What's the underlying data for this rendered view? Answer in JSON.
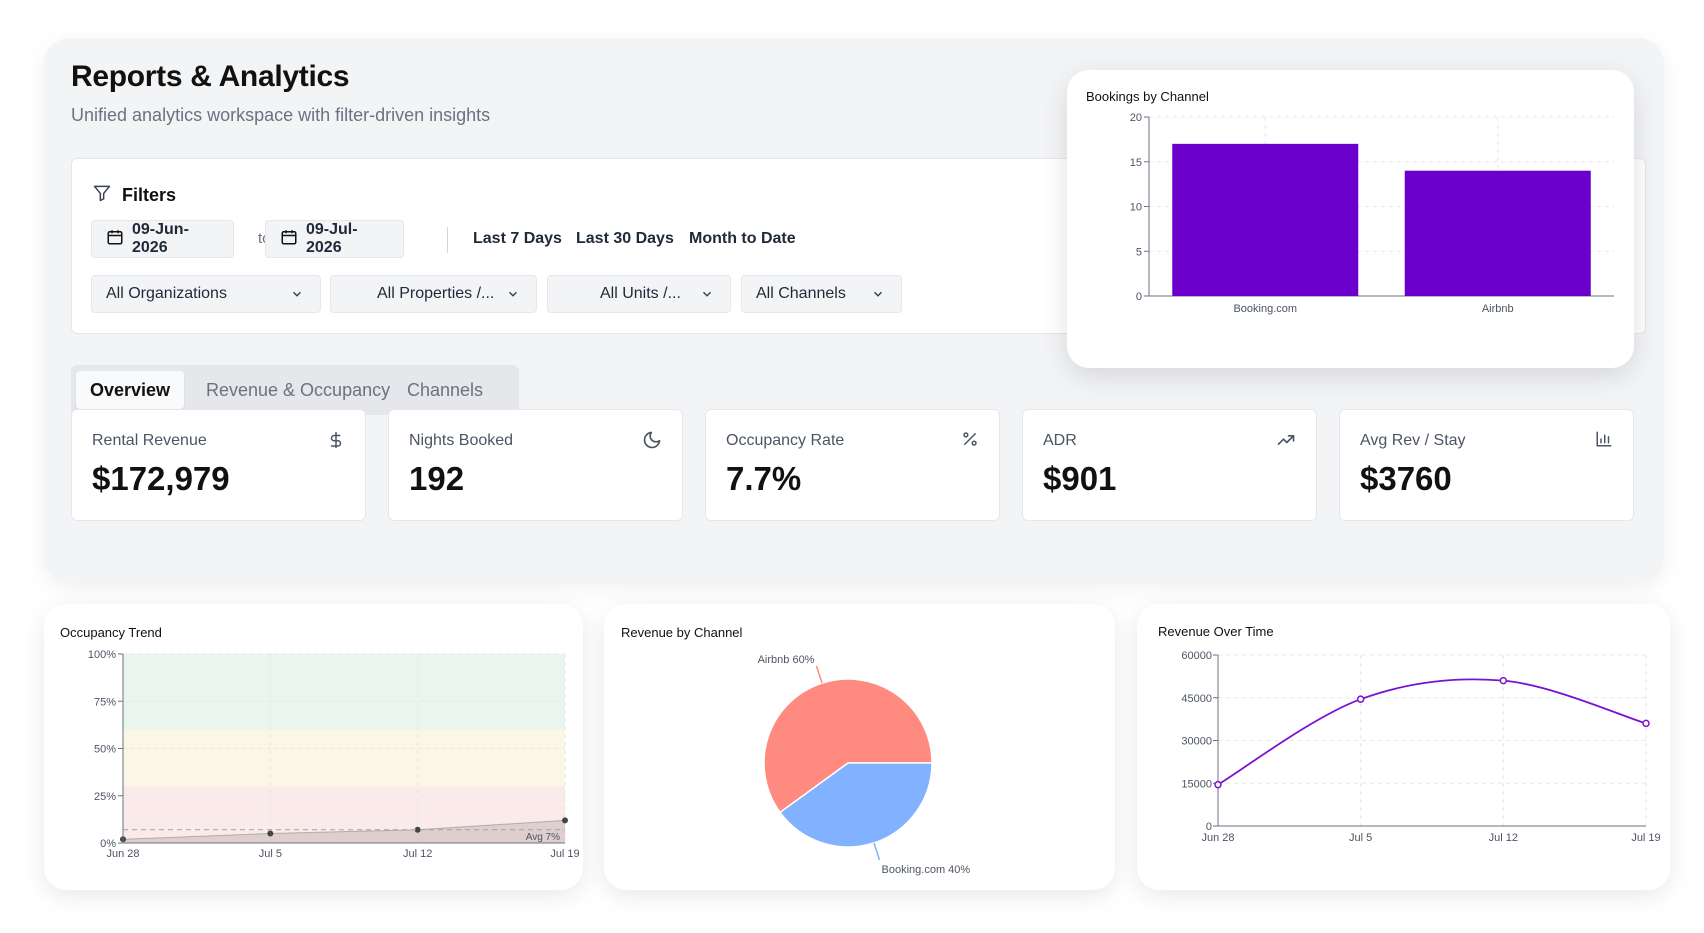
{
  "header": {
    "title": "Reports & Analytics",
    "subtitle": "Unified analytics workspace with filter-driven insights"
  },
  "filters": {
    "title": "Filters",
    "start_date": "09-Jun-2026",
    "to_label": "to",
    "end_date": "09-Jul-2026",
    "quick_ranges": [
      "Last 7 Days",
      "Last 30 Days",
      "Month to Date"
    ],
    "dropdowns": {
      "organizations": "All Organizations",
      "properties": "All Properties /...",
      "units": "All Units /...",
      "channels": "All Channels"
    }
  },
  "tabs": [
    {
      "label": "Overview",
      "active": true
    },
    {
      "label": "Revenue & Occupancy",
      "active": false
    },
    {
      "label": "Channels",
      "active": false
    }
  ],
  "kpis": [
    {
      "label": "Rental Revenue",
      "value": "$172,979",
      "icon": "dollar-icon"
    },
    {
      "label": "Nights Booked",
      "value": "192",
      "icon": "moon-icon"
    },
    {
      "label": "Occupancy Rate",
      "value": "7.7%",
      "icon": "percent-icon"
    },
    {
      "label": "ADR",
      "value": "$901",
      "icon": "trending-up-icon"
    },
    {
      "label": "Avg Rev / Stay",
      "value": "$3760",
      "icon": "bar-chart-icon"
    }
  ],
  "colors": {
    "bar": "#6b00cc",
    "line": "#7a12d4",
    "pie_airbnb": "#ff8a80",
    "pie_booking": "#82b1ff",
    "band_high": "#e9f6ee",
    "band_mid": "#fbf7e6",
    "band_low": "#fbeaea"
  },
  "chart_data": [
    {
      "type": "bar",
      "title": "Bookings by Channel",
      "categories": [
        "Booking.com",
        "Airbnb"
      ],
      "values": [
        17,
        14
      ],
      "ylim": [
        0,
        20
      ],
      "yticks": [
        0,
        5,
        10,
        15,
        20
      ],
      "grid": true
    },
    {
      "type": "area",
      "title": "Occupancy Trend",
      "x": [
        "Jun 28",
        "Jul 5",
        "Jul 12",
        "Jul 19"
      ],
      "values": [
        2,
        5,
        7,
        12
      ],
      "ylim": [
        0,
        100
      ],
      "yticks": [
        "0%",
        "25%",
        "50%",
        "75%",
        "100%"
      ],
      "bands": [
        {
          "from": 0,
          "to": 30,
          "label": "low"
        },
        {
          "from": 30,
          "to": 60,
          "label": "mid"
        },
        {
          "from": 60,
          "to": 100,
          "label": "high"
        }
      ],
      "average": 7,
      "average_label": "Avg 7%",
      "grid": true
    },
    {
      "type": "pie",
      "title": "Revenue by Channel",
      "slices": [
        {
          "label": "Airbnb 60%",
          "value": 60
        },
        {
          "label": "Booking.com 40%",
          "value": 40
        }
      ]
    },
    {
      "type": "line",
      "title": "Revenue Over Time",
      "x": [
        "Jun 28",
        "Jul 5",
        "Jul 12",
        "Jul 19"
      ],
      "values": [
        14500,
        44500,
        51000,
        36000
      ],
      "ylim": [
        0,
        60000
      ],
      "yticks": [
        0,
        15000,
        30000,
        45000,
        60000
      ],
      "grid": true
    }
  ]
}
